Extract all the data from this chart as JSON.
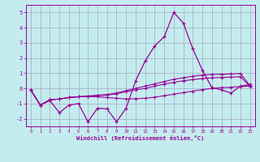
{
  "xlabel": "Windchill (Refroidissement éolien,°C)",
  "bg_color": "#c4ecee",
  "grid_color": "#9999bb",
  "line_color": "#990099",
  "x": [
    0,
    1,
    2,
    3,
    4,
    5,
    6,
    7,
    8,
    9,
    10,
    11,
    12,
    13,
    14,
    15,
    16,
    17,
    18,
    19,
    20,
    21,
    22,
    23
  ],
  "y_main": [
    -0.1,
    -1.1,
    -0.8,
    -1.6,
    -1.1,
    -1.0,
    -2.2,
    -1.3,
    -1.35,
    -2.2,
    -1.3,
    0.5,
    1.8,
    2.8,
    3.4,
    5.0,
    4.3,
    2.6,
    1.2,
    0.05,
    -0.1,
    -0.3,
    0.15,
    0.25
  ],
  "y_line2": [
    -0.1,
    -1.1,
    -0.75,
    -0.7,
    -0.6,
    -0.55,
    -0.5,
    -0.45,
    -0.4,
    -0.3,
    -0.15,
    0.0,
    0.15,
    0.3,
    0.45,
    0.6,
    0.7,
    0.8,
    0.88,
    0.92,
    0.93,
    0.95,
    0.98,
    0.18
  ],
  "y_line3": [
    -0.1,
    -1.1,
    -0.75,
    -0.7,
    -0.6,
    -0.55,
    -0.52,
    -0.48,
    -0.44,
    -0.35,
    -0.22,
    -0.1,
    -0.0,
    0.15,
    0.28,
    0.4,
    0.5,
    0.58,
    0.65,
    0.7,
    0.72,
    0.74,
    0.77,
    0.12
  ],
  "y_line4": [
    -0.1,
    -1.1,
    -0.75,
    -0.7,
    -0.6,
    -0.55,
    -0.55,
    -0.55,
    -0.6,
    -0.65,
    -0.7,
    -0.68,
    -0.65,
    -0.58,
    -0.48,
    -0.38,
    -0.28,
    -0.18,
    -0.08,
    0.0,
    0.05,
    0.08,
    0.12,
    0.15
  ],
  "ylim": [
    -2.5,
    5.5
  ],
  "xlim": [
    -0.5,
    23.5
  ],
  "ytick_vals": [
    -2,
    -1,
    0,
    1,
    2,
    3,
    4,
    5
  ],
  "ytick_labels": [
    "-2",
    "-1",
    "0",
    "1",
    "2",
    "3",
    "4",
    "5"
  ]
}
